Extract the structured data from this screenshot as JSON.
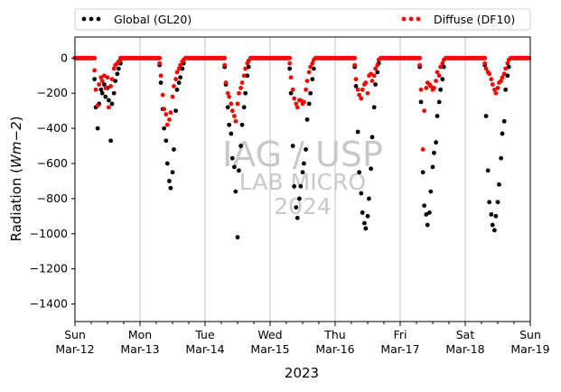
{
  "chart_data": {
    "type": "scatter",
    "xlabel": "2023",
    "ylabel_prefix": "Radiation (",
    "ylabel_unit": "Wm",
    "ylabel_exp": "−2",
    "ylabel_suffix": ")",
    "ylim": [
      -1500,
      120
    ],
    "yticks": [
      0,
      -200,
      -400,
      -600,
      -800,
      -1000,
      -1200,
      -1400
    ],
    "xlim": [
      0,
      7
    ],
    "xticks": [
      {
        "day": "Sun",
        "date": "Mar-12"
      },
      {
        "day": "Mon",
        "date": "Mar-13"
      },
      {
        "day": "Tue",
        "date": "Mar-14"
      },
      {
        "day": "Wed",
        "date": "Mar-15"
      },
      {
        "day": "Thu",
        "date": "Mar-16"
      },
      {
        "day": "Fri",
        "date": "Mar-17"
      },
      {
        "day": "Sat",
        "date": "Mar-18"
      },
      {
        "day": "Sun",
        "date": "Mar-19"
      }
    ],
    "grid": "vertical",
    "legend_placement": "top, above plot",
    "series": [
      {
        "name": "Global (GL20)",
        "color": "#000000",
        "x": [
          0.3,
          0.32,
          0.35,
          0.37,
          0.4,
          0.42,
          0.45,
          0.47,
          0.5,
          0.52,
          0.55,
          0.57,
          0.6,
          0.62,
          0.65,
          0.67,
          0.7,
          1.3,
          1.32,
          1.35,
          1.37,
          1.4,
          1.42,
          1.45,
          1.47,
          1.5,
          1.52,
          1.55,
          1.57,
          1.6,
          1.62,
          1.65,
          1.67,
          2.3,
          2.32,
          2.35,
          2.37,
          2.4,
          2.42,
          2.45,
          2.47,
          2.5,
          2.52,
          2.55,
          2.57,
          2.6,
          2.62,
          2.65,
          2.67,
          3.3,
          3.32,
          3.35,
          3.37,
          3.4,
          3.42,
          3.45,
          3.47,
          3.5,
          3.52,
          3.55,
          3.57,
          3.6,
          3.62,
          3.65,
          3.67,
          4.3,
          4.32,
          4.35,
          4.37,
          4.4,
          4.42,
          4.45,
          4.47,
          4.5,
          4.52,
          4.55,
          4.57,
          4.6,
          4.62,
          4.65,
          4.67,
          5.3,
          5.32,
          5.35,
          5.37,
          5.4,
          5.42,
          5.45,
          5.47,
          5.5,
          5.52,
          5.55,
          5.57,
          5.6,
          5.62,
          5.65,
          5.67,
          6.3,
          6.32,
          6.35,
          6.37,
          6.4,
          6.42,
          6.45,
          6.47,
          6.5,
          6.52,
          6.55,
          6.57,
          6.6,
          6.62,
          6.65,
          6.67
        ],
        "y": [
          -120,
          -280,
          -400,
          -260,
          -180,
          -200,
          -150,
          -220,
          -170,
          -240,
          -470,
          -260,
          -200,
          -130,
          -90,
          -60,
          -30,
          -40,
          -140,
          -290,
          -400,
          -470,
          -600,
          -700,
          -740,
          -650,
          -520,
          -300,
          -180,
          -140,
          -110,
          -60,
          -30,
          -50,
          -150,
          -280,
          -380,
          -430,
          -570,
          -620,
          -760,
          -1020,
          -640,
          -500,
          -380,
          -280,
          -200,
          -100,
          -50,
          -60,
          -200,
          -500,
          -730,
          -850,
          -910,
          -800,
          -730,
          -650,
          -600,
          -520,
          -350,
          -260,
          -200,
          -120,
          -60,
          -50,
          -160,
          -420,
          -650,
          -770,
          -880,
          -940,
          -970,
          -900,
          -800,
          -630,
          -450,
          -280,
          -150,
          -80,
          -30,
          -50,
          -250,
          -650,
          -840,
          -890,
          -950,
          -880,
          -760,
          -620,
          -540,
          -480,
          -330,
          -250,
          -180,
          -120,
          -50,
          -40,
          -330,
          -640,
          -820,
          -890,
          -950,
          -980,
          -900,
          -820,
          -720,
          -570,
          -430,
          -360,
          -180,
          -100,
          -50
        ]
      },
      {
        "name": "Diffuse (DF10)",
        "color": "#ff0000",
        "x": [
          0.3,
          0.32,
          0.35,
          0.37,
          0.4,
          0.42,
          0.45,
          0.47,
          0.5,
          0.52,
          0.55,
          0.57,
          0.6,
          0.62,
          0.65,
          0.67,
          0.7,
          1.3,
          1.32,
          1.35,
          1.37,
          1.4,
          1.42,
          1.45,
          1.47,
          1.5,
          1.52,
          1.55,
          1.57,
          1.6,
          1.62,
          1.65,
          1.67,
          2.3,
          2.32,
          2.35,
          2.37,
          2.4,
          2.42,
          2.45,
          2.47,
          2.5,
          2.52,
          2.55,
          2.57,
          2.6,
          2.62,
          2.65,
          2.67,
          3.3,
          3.32,
          3.35,
          3.37,
          3.4,
          3.42,
          3.45,
          3.47,
          3.5,
          3.52,
          3.55,
          3.57,
          3.6,
          3.62,
          3.65,
          3.67,
          4.3,
          4.32,
          4.35,
          4.37,
          4.4,
          4.42,
          4.45,
          4.47,
          4.5,
          4.52,
          4.55,
          4.57,
          4.6,
          4.62,
          4.65,
          4.67,
          5.3,
          5.32,
          5.35,
          5.37,
          5.4,
          5.42,
          5.45,
          5.47,
          5.5,
          5.52,
          5.55,
          5.57,
          5.6,
          5.62,
          5.65,
          5.67,
          6.3,
          6.32,
          6.35,
          6.37,
          6.4,
          6.42,
          6.45,
          6.47,
          6.5,
          6.52,
          6.55,
          6.57,
          6.6,
          6.62,
          6.65,
          6.67
        ],
        "y": [
          -70,
          -180,
          -270,
          -150,
          -110,
          -130,
          -100,
          -170,
          -110,
          -280,
          -160,
          -120,
          -60,
          -40,
          -30,
          -20,
          -10,
          -30,
          -100,
          -210,
          -290,
          -320,
          -380,
          -350,
          -310,
          -220,
          -160,
          -120,
          -80,
          -60,
          -40,
          -20,
          -10,
          -40,
          -140,
          -200,
          -220,
          -260,
          -300,
          -330,
          -360,
          -260,
          -200,
          -170,
          -140,
          -100,
          -60,
          -30,
          -15,
          -30,
          -110,
          -180,
          -230,
          -260,
          -280,
          -240,
          -240,
          -260,
          -250,
          -180,
          -130,
          -80,
          -50,
          -30,
          -10,
          -40,
          -120,
          -180,
          -210,
          -230,
          -180,
          -150,
          -140,
          -200,
          -100,
          -90,
          -130,
          -100,
          -60,
          -40,
          -10,
          -40,
          -180,
          -520,
          -300,
          -170,
          -140,
          -150,
          -160,
          -180,
          -170,
          -130,
          -80,
          -100,
          -50,
          -30,
          -10,
          -30,
          -60,
          -80,
          -90,
          -120,
          -150,
          -180,
          -200,
          -170,
          -140,
          -130,
          -110,
          -90,
          -60,
          -30,
          -10
        ]
      }
    ],
    "watermark": [
      "IAG / USP",
      "LAB MICRO",
      "2024"
    ]
  }
}
